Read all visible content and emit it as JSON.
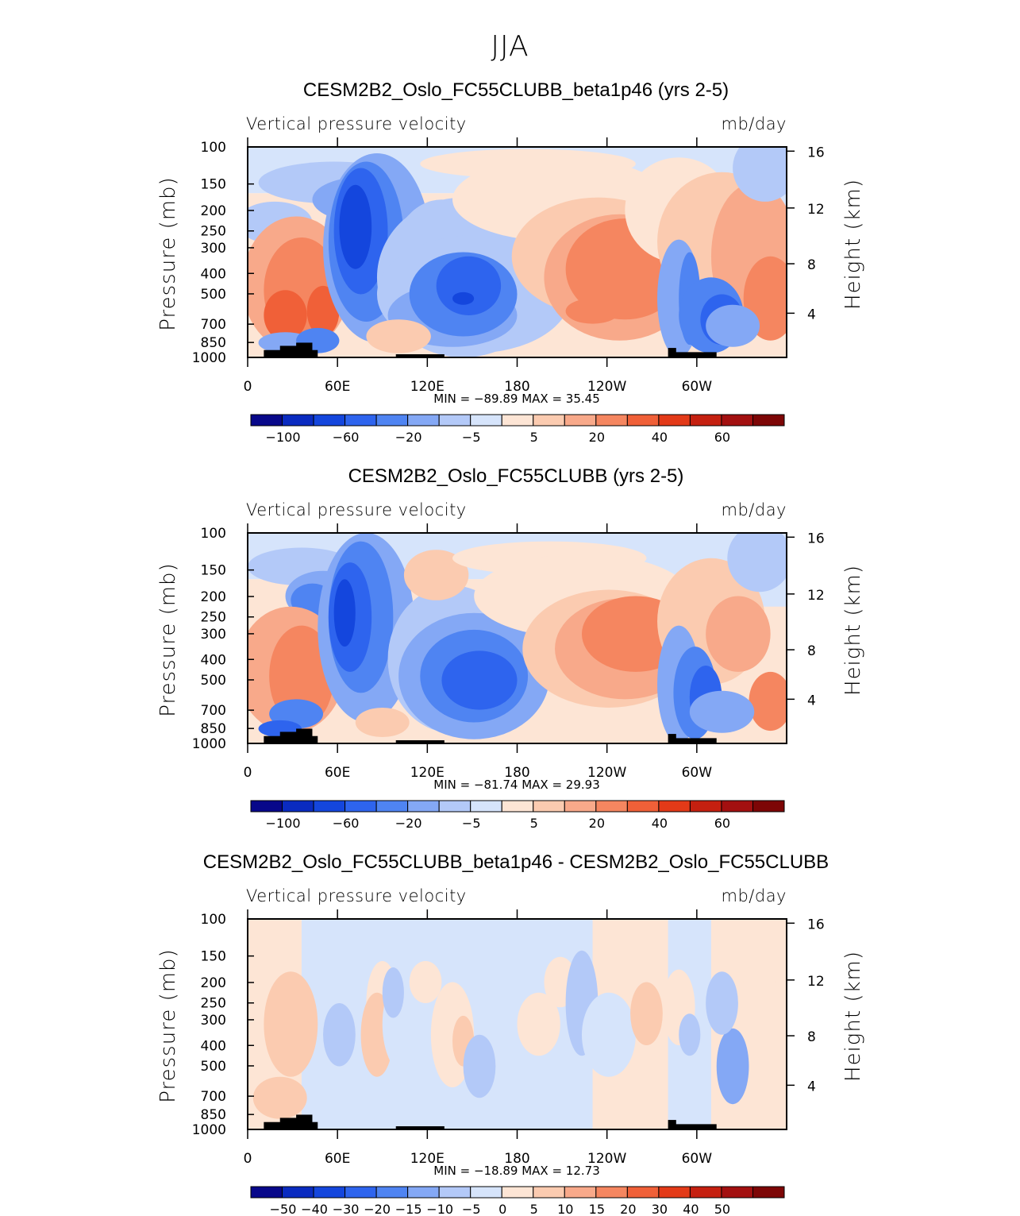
{
  "main_title": "JJA",
  "colors": {
    "plot_border": "#000000",
    "topography": "#000000"
  },
  "chart_data": [
    {
      "type": "heatmap",
      "title": "CESM2B2_Oslo_FC55CLUBB_beta1p46 (yrs 2-5)",
      "subtitle_left": "Vertical pressure velocity",
      "subtitle_right": "mb/day",
      "ylabel": "Pressure (mb)",
      "ylabel_right": "Height (km)",
      "y_ticks": [
        "100",
        "150",
        "200",
        "250",
        "300",
        "400",
        "500",
        "700",
        "850",
        "1000"
      ],
      "y_ticks_right": [
        "16",
        "12",
        "8",
        "4"
      ],
      "x_ticks": [
        "0",
        "60E",
        "120E",
        "180",
        "120W",
        "60W"
      ],
      "min_max_text": "MIN = −89.89   MAX =  35.45",
      "colorbar_labels": [
        "−100",
        "−60",
        "−20",
        "−5",
        "5",
        "20",
        "40",
        "60"
      ],
      "colorbar_colors": [
        "#08088a",
        "#0a2bc0",
        "#1446dd",
        "#2e64ee",
        "#4f84f2",
        "#84a8f5",
        "#b3c9f8",
        "#d6e4fb",
        "#fde5d5",
        "#fbcbb0",
        "#f8a98a",
        "#f58660",
        "#f06038",
        "#e33a18",
        "#c52010",
        "#a31010",
        "#7d0606"
      ],
      "extrema": {
        "min": -89.89,
        "max": 35.45
      }
    },
    {
      "type": "heatmap",
      "title": "CESM2B2_Oslo_FC55CLUBB (yrs 2-5)",
      "subtitle_left": "Vertical pressure velocity",
      "subtitle_right": "mb/day",
      "ylabel": "Pressure (mb)",
      "ylabel_right": "Height (km)",
      "y_ticks": [
        "100",
        "150",
        "200",
        "250",
        "300",
        "400",
        "500",
        "700",
        "850",
        "1000"
      ],
      "y_ticks_right": [
        "16",
        "12",
        "8",
        "4"
      ],
      "x_ticks": [
        "0",
        "60E",
        "120E",
        "180",
        "120W",
        "60W"
      ],
      "min_max_text": "MIN = −81.74   MAX =  29.93",
      "colorbar_labels": [
        "−100",
        "−60",
        "−20",
        "−5",
        "5",
        "20",
        "40",
        "60"
      ],
      "colorbar_colors": [
        "#08088a",
        "#0a2bc0",
        "#1446dd",
        "#2e64ee",
        "#4f84f2",
        "#84a8f5",
        "#b3c9f8",
        "#d6e4fb",
        "#fde5d5",
        "#fbcbb0",
        "#f8a98a",
        "#f58660",
        "#f06038",
        "#e33a18",
        "#c52010",
        "#a31010",
        "#7d0606"
      ],
      "extrema": {
        "min": -81.74,
        "max": 29.93
      }
    },
    {
      "type": "heatmap",
      "title": "CESM2B2_Oslo_FC55CLUBB_beta1p46 - CESM2B2_Oslo_FC55CLUBB",
      "subtitle_left": "Vertical pressure velocity",
      "subtitle_right": "mb/day",
      "ylabel": "Pressure (mb)",
      "ylabel_right": "Height (km)",
      "y_ticks": [
        "100",
        "150",
        "200",
        "250",
        "300",
        "400",
        "500",
        "700",
        "850",
        "1000"
      ],
      "y_ticks_right": [
        "16",
        "12",
        "8",
        "4"
      ],
      "x_ticks": [
        "0",
        "60E",
        "120E",
        "180",
        "120W",
        "60W"
      ],
      "min_max_text": "MIN = −18.89   MAX =  12.73",
      "colorbar_labels": [
        "−50",
        "−40",
        "−30",
        "−20",
        "−15",
        "−10",
        "−5",
        "0",
        "5",
        "10",
        "15",
        "20",
        "30",
        "40",
        "50"
      ],
      "colorbar_colors": [
        "#08088a",
        "#0a2bc0",
        "#1446dd",
        "#2e64ee",
        "#4f84f2",
        "#84a8f5",
        "#b3c9f8",
        "#d6e4fb",
        "#fde5d5",
        "#fbcbb0",
        "#f8a98a",
        "#f58660",
        "#f06038",
        "#e33a18",
        "#c52010",
        "#a31010",
        "#7d0606"
      ],
      "extrema": {
        "min": -18.89,
        "max": 12.73
      }
    }
  ]
}
